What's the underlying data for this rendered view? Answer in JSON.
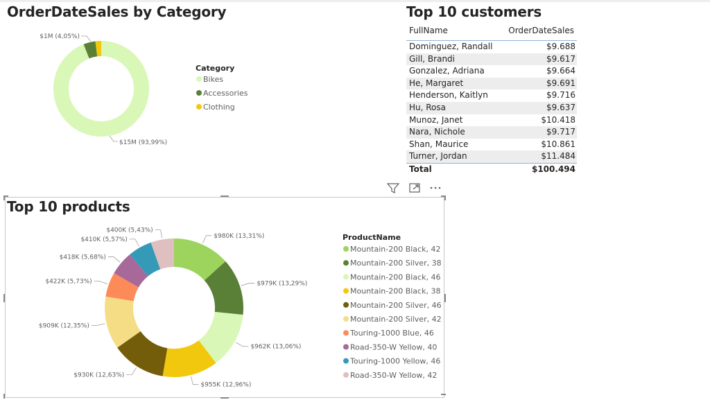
{
  "category_chart": {
    "title": "OrderDateSales by Category",
    "legend_title": "Category",
    "data_labels": [
      "$1M (4,05%)",
      "$15M (93,99%)"
    ]
  },
  "customers_table": {
    "title": "Top 10 customers",
    "columns": [
      "FullName",
      "OrderDateSales"
    ],
    "rows": [
      {
        "name": "Dominguez, Randall",
        "value": "$9.688"
      },
      {
        "name": "Gill, Brandi",
        "value": "$9.617"
      },
      {
        "name": "Gonzalez, Adriana",
        "value": "$9.664"
      },
      {
        "name": "He, Margaret",
        "value": "$9.691"
      },
      {
        "name": "Henderson, Kaitlyn",
        "value": "$9.716"
      },
      {
        "name": "Hu, Rosa",
        "value": "$9.637"
      },
      {
        "name": "Munoz, Janet",
        "value": "$10.418"
      },
      {
        "name": "Nara, Nichole",
        "value": "$9.717"
      },
      {
        "name": "Shan, Maurice",
        "value": "$10.861"
      },
      {
        "name": "Turner, Jordan",
        "value": "$11.484"
      }
    ],
    "total_label": "Total",
    "total_value": "$100.494"
  },
  "products_chart": {
    "title": "Top 10 products",
    "legend_title": "ProductName"
  },
  "header_icons": [
    "filter-icon",
    "focus-mode-icon",
    "more-options-icon"
  ],
  "chart_data": [
    {
      "type": "pie",
      "variant": "donut",
      "title": "OrderDateSales by Category",
      "legend_title": "Category",
      "legend_position": "right",
      "labels": [
        "Bikes",
        "Accessories",
        "Clothing"
      ],
      "values": [
        93.99,
        4.05,
        1.96
      ],
      "colors": [
        "#d9f7b7",
        "#5a7f36",
        "#f2c80f"
      ]
    },
    {
      "type": "pie",
      "variant": "donut",
      "title": "Top 10 products",
      "legend_title": "ProductName",
      "legend_position": "right",
      "labels": [
        "Mountain-200 Black, 42",
        "Mountain-200 Silver, 38",
        "Mountain-200 Black, 46",
        "Mountain-200 Black, 38",
        "Mountain-200 Silver, 46",
        "Mountain-200 Silver, 42",
        "Touring-1000 Blue, 46",
        "Road-350-W Yellow, 40",
        "Touring-1000 Yellow, 46",
        "Road-350-W Yellow, 42"
      ],
      "values": [
        980,
        979,
        962,
        955,
        930,
        909,
        422,
        418,
        410,
        400
      ],
      "value_labels": [
        "$980K (13,31%)",
        "$979K (13,29%)",
        "$962K (13,06%)",
        "$955K (12,96%)",
        "$930K (12,63%)",
        "$909K (12,35%)",
        "$422K (5,73%)",
        "$418K (5,68%)",
        "$410K (5,57%)",
        "$400K (5,43%)"
      ],
      "percents": [
        13.31,
        13.29,
        13.06,
        12.96,
        12.63,
        12.35,
        5.73,
        5.68,
        5.57,
        5.43
      ],
      "colors": [
        "#9cd45e",
        "#5a7f36",
        "#d9f7b7",
        "#f2c80f",
        "#735c0a",
        "#f5dd86",
        "#fd8b5a",
        "#a66999",
        "#3599b8",
        "#dfbfbf"
      ]
    }
  ]
}
